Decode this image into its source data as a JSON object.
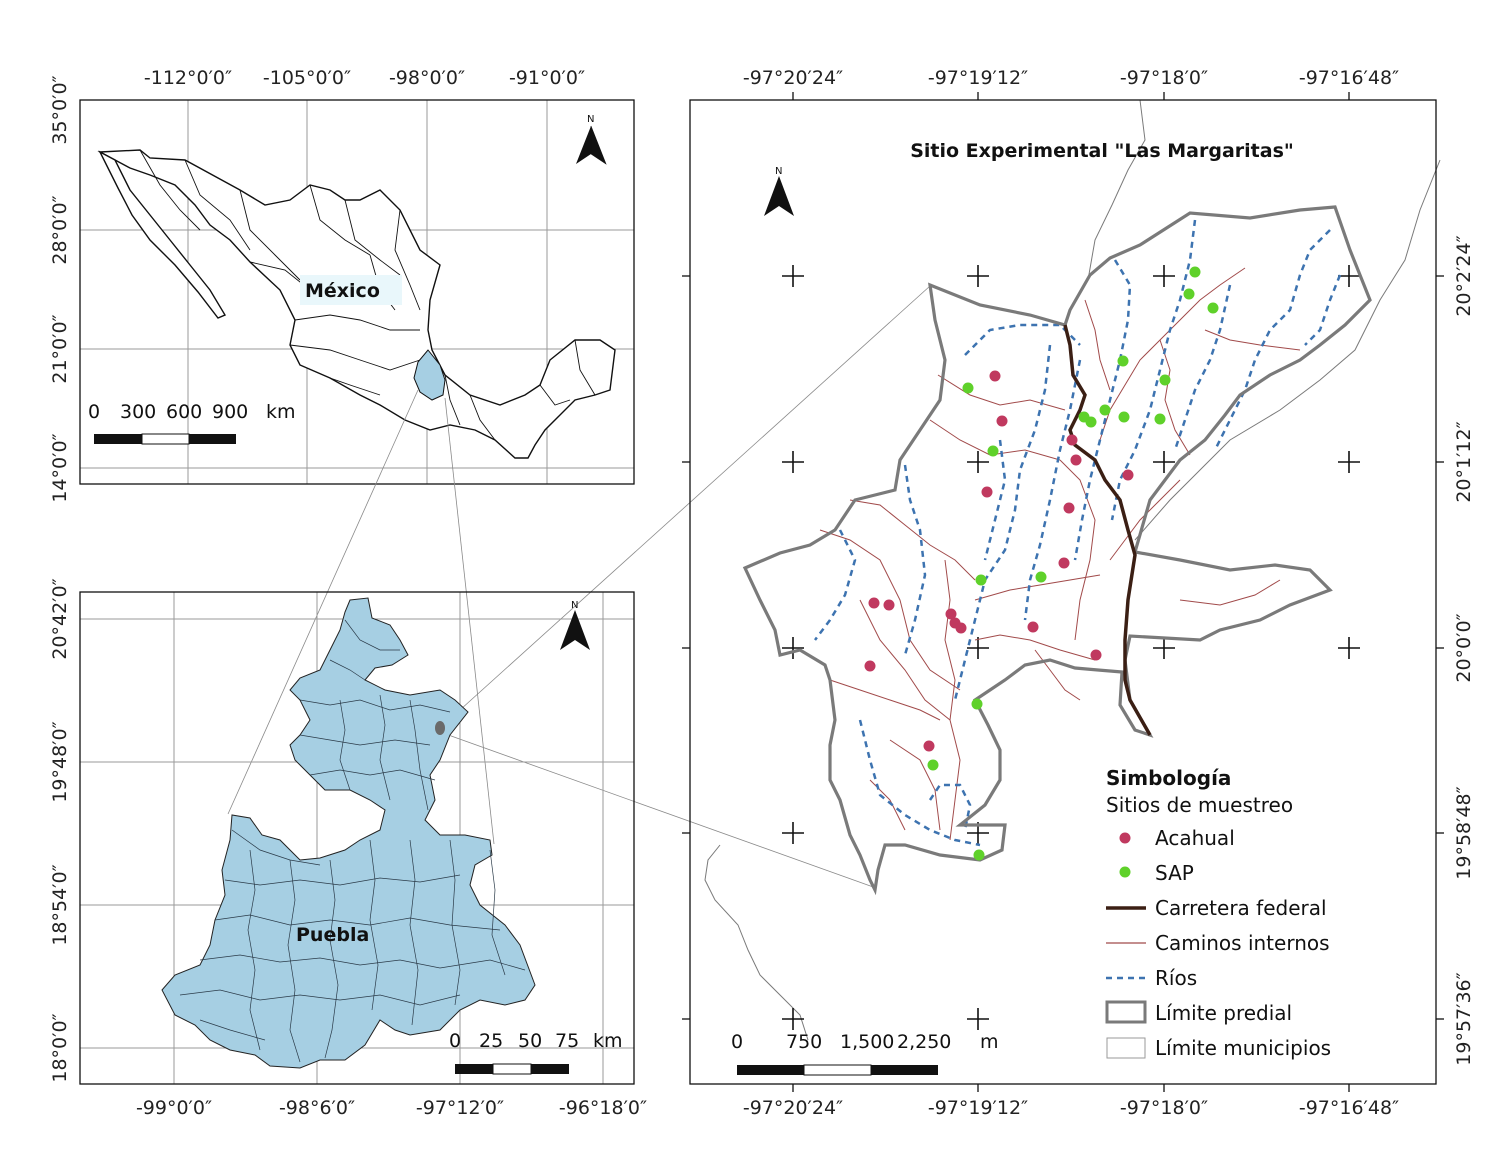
{
  "colors": {
    "frame": "#111111",
    "grid": "#9a9a9a",
    "puebla_fill": "#a6cfe3",
    "acahual": "#c0395f",
    "sap": "#5fd12a",
    "road": "#3b1f14",
    "internal_roads": "#a14a4a",
    "rivers": "#3d73b0",
    "boundary": "#7a7a7a",
    "municipal": "#7a7a7a"
  },
  "mexico_map": {
    "label": "México",
    "top_lon_labels": [
      "-112°0′0″",
      "-105°0′0″",
      "-98°0′0″",
      "-91°0′0″"
    ],
    "left_lat_labels": [
      "35°0′0″",
      "28°0′0″",
      "21°0′0″",
      "14°0′0″"
    ],
    "scale_labels": [
      "0",
      "300",
      "600",
      "900",
      "km"
    ],
    "north_icon": "north-arrow",
    "north_letter": "N"
  },
  "puebla_map": {
    "label": "Puebla",
    "bottom_lon_labels": [
      "-99°0′0″",
      "-98°6′0″",
      "-97°12′0″",
      "-96°18′0″"
    ],
    "left_lat_labels": [
      "20°42′0″",
      "19°48′0″",
      "18°54′0″",
      "18°0′0″"
    ],
    "scale_labels": [
      "0",
      "25",
      "50",
      "75",
      "km"
    ],
    "north_icon": "north-arrow",
    "north_letter": "N"
  },
  "site_map": {
    "title": "Sitio Experimental \"Las Margaritas\"",
    "top_lon_labels": [
      "-97°20′24″",
      "-97°19′12″",
      "-97°18′0″",
      "-97°16′48″"
    ],
    "bottom_lon_labels": [
      "-97°20′24″",
      "-97°19′12″",
      "-97°18′0″",
      "-97°16′48″"
    ],
    "right_lat_labels": [
      "20°2′24″",
      "20°1′12″",
      "20°0′0″",
      "19°58′48″",
      "19°57′36″"
    ],
    "scale_labels": [
      "0",
      "750",
      "1,500",
      "2,250",
      "m"
    ],
    "north_icon": "north-arrow",
    "north_letter": "N"
  },
  "legend": {
    "title": "Simbología",
    "subtitle": "Sitios de muestreo",
    "items": [
      {
        "label": "Acahual",
        "symbol": "dot-magenta"
      },
      {
        "label": "SAP",
        "symbol": "dot-green"
      },
      {
        "label": "Carretera federal",
        "symbol": "thick-dark-line"
      },
      {
        "label": "Caminos internos",
        "symbol": "thin-red-line"
      },
      {
        "label": "Ríos",
        "symbol": "dashed-blue-line"
      },
      {
        "label": "Límite predial",
        "symbol": "grey-box"
      },
      {
        "label": "Límite municipios",
        "symbol": "light-box"
      }
    ]
  }
}
